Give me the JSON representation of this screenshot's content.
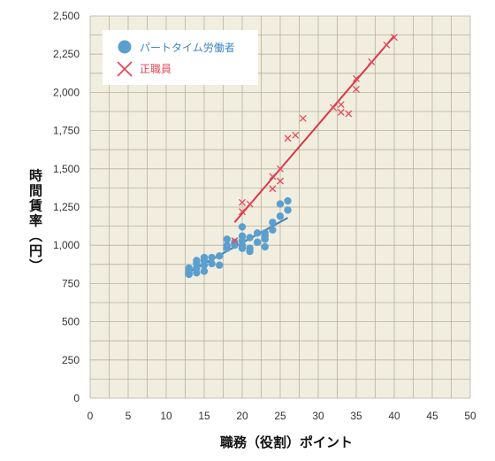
{
  "chart_data": {
    "type": "scatter",
    "xlabel": "職務（役割）ポイント",
    "ylabel": "時間賃率（円）",
    "xlim": [
      0,
      50
    ],
    "ylim": [
      0,
      2500
    ],
    "x_ticks": [
      "0",
      "5",
      "10",
      "15",
      "20",
      "25",
      "30",
      "35",
      "40",
      "45",
      "50"
    ],
    "y_ticks": [
      "0",
      "250",
      "500",
      "750",
      "1,000",
      "1,250",
      "1,500",
      "1,750",
      "2,000",
      "2,250",
      "2,500"
    ],
    "grid": true,
    "background": "#f2eedf",
    "legend_position": "top-left",
    "series": [
      {
        "name": "パートタイム労働者",
        "marker": "circle",
        "color": "#5b9fcf",
        "points": [
          [
            13,
            810
          ],
          [
            13,
            830
          ],
          [
            13,
            850
          ],
          [
            14,
            820
          ],
          [
            14,
            850
          ],
          [
            14,
            880
          ],
          [
            14,
            900
          ],
          [
            15,
            830
          ],
          [
            15,
            870
          ],
          [
            15,
            900
          ],
          [
            15,
            920
          ],
          [
            16,
            880
          ],
          [
            16,
            920
          ],
          [
            17,
            870
          ],
          [
            17,
            930
          ],
          [
            18,
            980
          ],
          [
            18,
            1000
          ],
          [
            18,
            1040
          ],
          [
            19,
            1000
          ],
          [
            19,
            1020
          ],
          [
            20,
            980
          ],
          [
            20,
            1000
          ],
          [
            20,
            1030
          ],
          [
            20,
            1060
          ],
          [
            20,
            1120
          ],
          [
            21,
            960
          ],
          [
            21,
            980
          ],
          [
            21,
            1050
          ],
          [
            22,
            1020
          ],
          [
            22,
            1080
          ],
          [
            23,
            990
          ],
          [
            23,
            1040
          ],
          [
            23,
            1060
          ],
          [
            23,
            1080
          ],
          [
            24,
            1100
          ],
          [
            24,
            1150
          ],
          [
            25,
            1190
          ],
          [
            25,
            1270
          ],
          [
            26,
            1230
          ],
          [
            26,
            1290
          ]
        ]
      },
      {
        "name": "正職員",
        "marker": "x",
        "color": "#e24a5a",
        "points": [
          [
            19,
            1030
          ],
          [
            20,
            1220
          ],
          [
            20,
            1280
          ],
          [
            21,
            1270
          ],
          [
            24,
            1370
          ],
          [
            24,
            1450
          ],
          [
            25,
            1500
          ],
          [
            25,
            1420
          ],
          [
            26,
            1700
          ],
          [
            27,
            1720
          ],
          [
            28,
            1830
          ],
          [
            32,
            1900
          ],
          [
            33,
            1920
          ],
          [
            33,
            1870
          ],
          [
            34,
            1860
          ],
          [
            35,
            2020
          ],
          [
            35,
            2090
          ],
          [
            37,
            2200
          ],
          [
            39,
            2310
          ],
          [
            40,
            2360
          ]
        ]
      }
    ],
    "trendlines": [
      {
        "series": "パートタイム労働者",
        "color": "#3f7fb8",
        "x": [
          13,
          26
        ],
        "y": [
          825,
          1180
        ]
      },
      {
        "series": "正職員",
        "color": "#d9364a",
        "x": [
          19,
          40
        ],
        "y": [
          1150,
          2370
        ]
      }
    ]
  }
}
